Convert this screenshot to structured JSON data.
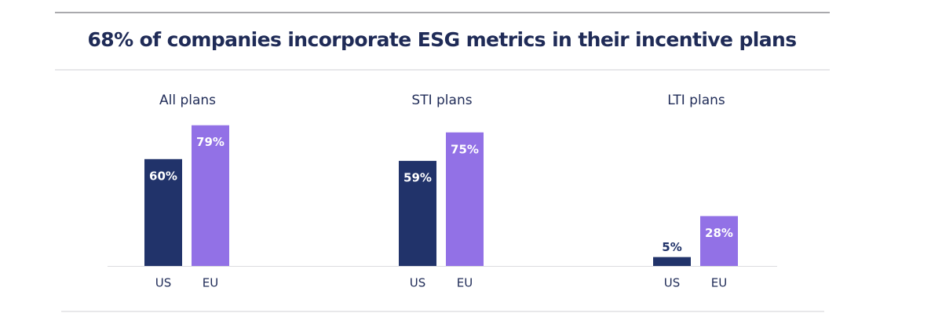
{
  "title": "68% of companies incorporate ESG metrics in their incentive plans",
  "chart_data": [
    {
      "type": "bar",
      "title": "All plans",
      "categories": [
        "US",
        "EU"
      ],
      "values": [
        60,
        79
      ],
      "value_labels": [
        "60%",
        "79%"
      ],
      "colors": [
        "#21336a",
        "#9271e6"
      ]
    },
    {
      "type": "bar",
      "title": "STI plans",
      "categories": [
        "US",
        "EU"
      ],
      "values": [
        59,
        75
      ],
      "value_labels": [
        "59%",
        "75%"
      ],
      "colors": [
        "#21336a",
        "#9271e6"
      ]
    },
    {
      "type": "bar",
      "title": "LTI plans",
      "categories": [
        "US",
        "EU"
      ],
      "values": [
        5,
        28
      ],
      "value_labels": [
        "5%",
        "28%"
      ],
      "colors": [
        "#21336a",
        "#9271e6"
      ]
    }
  ]
}
